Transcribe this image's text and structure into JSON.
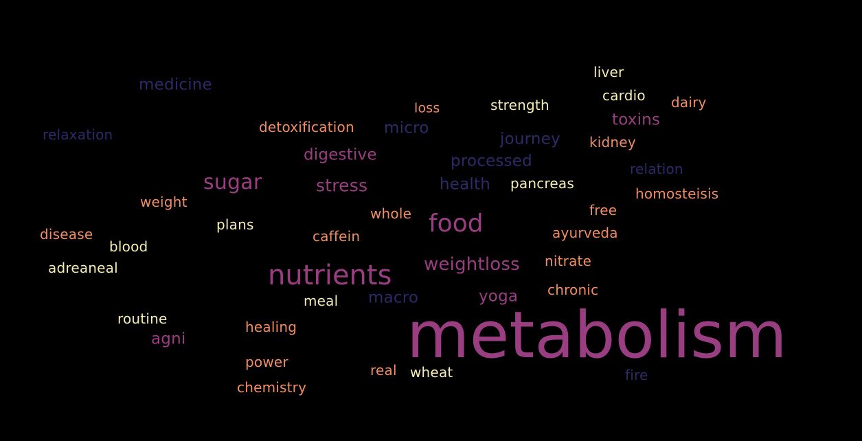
{
  "words": {
    "metabolism": "metabolism",
    "nutrients": "nutrients",
    "food": "food",
    "sugar": "sugar",
    "stress": "stress",
    "weightloss": "weightloss",
    "medicine": "medicine",
    "relaxation": "relaxation",
    "detoxification": "detoxification",
    "loss": "loss",
    "micro": "micro",
    "strength": "strength",
    "liver": "liver",
    "cardio": "cardio",
    "dairy": "dairy",
    "toxins": "toxins",
    "journey": "journey",
    "kidney": "kidney",
    "digestive": "digestive",
    "processed": "processed",
    "relation": "relation",
    "health": "health",
    "pancreas": "pancreas",
    "homosteisis": "homosteisis",
    "weight": "weight",
    "whole": "whole",
    "free": "free",
    "plans": "plans",
    "disease": "disease",
    "caffein": "caffein",
    "ayurveda": "ayurveda",
    "blood": "blood",
    "nitrate": "nitrate",
    "adreaneal": "adreaneal",
    "chronic": "chronic",
    "meal": "meal",
    "macro": "macro",
    "yoga": "yoga",
    "routine": "routine",
    "healing": "healing",
    "agni": "agni",
    "power": "power",
    "real": "real",
    "wheat": "wheat",
    "fire": "fire",
    "chemistry": "chemistry"
  },
  "palette": {
    "background": "#000000",
    "purple": "#2e2a66",
    "magenta": "#9a3e82",
    "salmon": "#ef8d66",
    "cream": "#f4eeb4"
  }
}
